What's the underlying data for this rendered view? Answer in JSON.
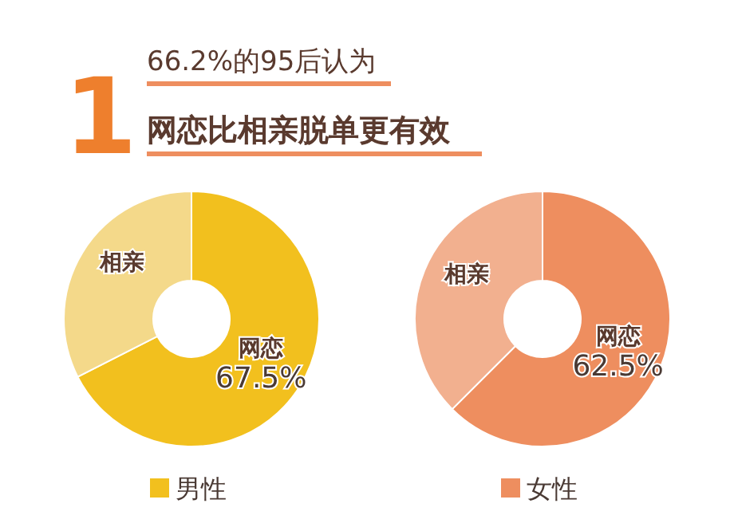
{
  "chart_data": [
    {
      "type": "other",
      "title": "66.2%的95后认为",
      "subtitle": "网恋比相亲脱单更有效",
      "annotations": [
        "1"
      ]
    },
    {
      "type": "donut",
      "categories": [
        "网恋",
        "相亲"
      ],
      "colors": [
        "#f2c01e",
        "#f4d98a"
      ],
      "value_labels": [
        "67.5%",
        null
      ],
      "series": [
        {
          "name": "男性",
          "color": "#f2c01e",
          "values": [
            67.5,
            32.5
          ]
        }
      ],
      "legend": "bottom"
    },
    {
      "type": "donut",
      "categories": [
        "网恋",
        "相亲"
      ],
      "colors": [
        "#ee8e5f",
        "#f2b08f"
      ],
      "value_labels": [
        "62.5%",
        null
      ],
      "series": [
        {
          "name": "女性",
          "color": "#ee8e5f",
          "values": [
            62.5,
            37.5
          ]
        }
      ],
      "legend": "bottom"
    }
  ]
}
